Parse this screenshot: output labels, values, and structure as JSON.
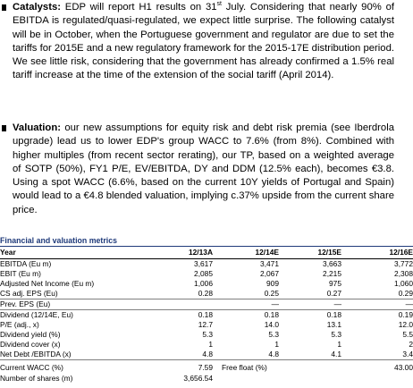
{
  "bullets": [
    {
      "lead": "Catalysts:",
      "text_before_sup": " EDP will report H1 results on 31",
      "sup": "st",
      "text_after_sup": " July. Considering that nearly 90% of EBITDA is regulated/quasi-regulated, we expect little surprise. The following catalyst will be in October, when the Portuguese government and regulator are due to set the tariffs for 2015E and a new regulatory framework for the 2015-17E distribution period. We see little risk, considering that the government has already confirmed a 1.5% real tariff increase at the time of the extension of the social tariff (April 2014)."
    },
    {
      "lead": "Valuation:",
      "text": " our new assumptions for equity risk and debt risk premia (see Iberdrola upgrade) lead us to lower EDP's group WACC to 7.6% (from 8%). Combined with higher multiples (from recent sector rerating), our TP, based on a weighted average of SOTP (50%), FY1 P/E, EV/EBITDA, DY and DDM (12.5% each), becomes €3.8. Using a spot WACC (6.6%, based on the current 10Y yields of Portugal and Spain) would lead to a €4.8 blended valuation, implying c.37% upside from the current share price."
    }
  ],
  "table": {
    "title": "Financial and valuation metrics",
    "headers": [
      "Year",
      "12/13A",
      "12/14E",
      "12/15E",
      "12/16E"
    ],
    "rows": [
      {
        "label": "EBITDA (Eu m)",
        "values": [
          "3,617",
          "3,471",
          "3,663",
          "3,772"
        ]
      },
      {
        "label": "EBIT (Eu m)",
        "values": [
          "2,085",
          "2,067",
          "2,215",
          "2,308"
        ]
      },
      {
        "label": "Adjusted Net Income (Eu m)",
        "values": [
          "1,006",
          "909",
          "975",
          "1,060"
        ]
      },
      {
        "label": "CS adj. EPS (Eu)",
        "values": [
          "0.28",
          "0.25",
          "0.27",
          "0.29"
        ]
      },
      {
        "label": "Prev. EPS (Eu)",
        "values": [
          "",
          "—",
          "—",
          "—"
        ]
      },
      {
        "label": "Dividend (12/14E, Eu)",
        "values": [
          "0.18",
          "0.18",
          "0.18",
          "0.19"
        ]
      },
      {
        "label": "P/E (adj., x)",
        "values": [
          "12.7",
          "14.0",
          "13.1",
          "12.0"
        ]
      },
      {
        "label": "Dividend yield (%)",
        "values": [
          "5.3",
          "5.3",
          "5.3",
          "5.5"
        ]
      },
      {
        "label": "Dividend cover (x)",
        "values": [
          "1",
          "1",
          "1",
          "2"
        ]
      },
      {
        "label": "Net Debt /EBITDA (x)",
        "values": [
          "4.8",
          "4.8",
          "4.1",
          "3.4"
        ]
      }
    ],
    "footer": {
      "wacc_label": "Current WACC (%)",
      "wacc_value": "7.59",
      "free_float_label": "Free float (%)",
      "free_float_value": "43.00",
      "shares_label": "Number of shares (m)",
      "shares_value": "3,656.54"
    }
  }
}
